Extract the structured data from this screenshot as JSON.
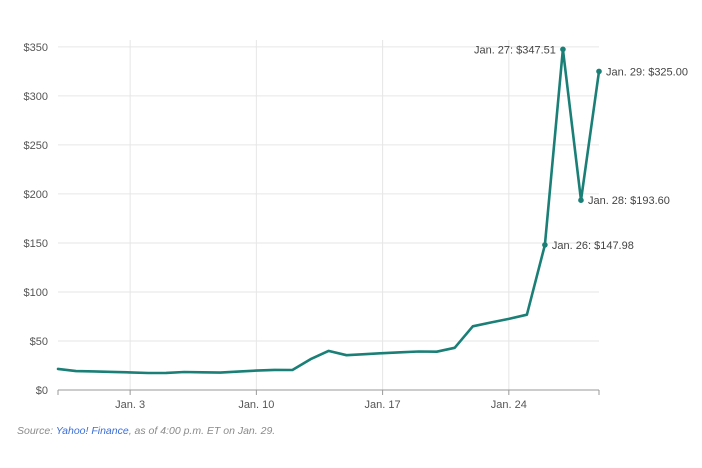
{
  "chart_data": {
    "type": "line",
    "title": "",
    "xlabel": "",
    "ylabel": "",
    "y_tick_labels": [
      "$0",
      "$50",
      "$100",
      "$150",
      "$200",
      "$250",
      "$300",
      "$350"
    ],
    "y_ticks": [
      0,
      50,
      100,
      150,
      200,
      250,
      300,
      350
    ],
    "ylim": [
      0,
      357
    ],
    "x_tick_labels": [
      "Jan. 3",
      "Jan. 10",
      "Jan. 17",
      "Jan. 24"
    ],
    "x_ticks": [
      "2021-01-03",
      "2021-01-10",
      "2021-01-17",
      "2021-01-24"
    ],
    "xlim": [
      "2020-12-30",
      "2021-01-29"
    ],
    "grid": true,
    "line_color": "#1a7f76",
    "series": [
      {
        "x": [
          "2020-12-30",
          "2020-12-31",
          "2021-01-01",
          "2021-01-02",
          "2021-01-03",
          "2021-01-04",
          "2021-01-05",
          "2021-01-06",
          "2021-01-07",
          "2021-01-08",
          "2021-01-09",
          "2021-01-10",
          "2021-01-11",
          "2021-01-12",
          "2021-01-13",
          "2021-01-14",
          "2021-01-15",
          "2021-01-16",
          "2021-01-17",
          "2021-01-18",
          "2021-01-19",
          "2021-01-20",
          "2021-01-21",
          "2021-01-22",
          "2021-01-23",
          "2021-01-24",
          "2021-01-25",
          "2021-01-26",
          "2021-01-27",
          "2021-01-28",
          "2021-01-29"
        ],
        "values": [
          21.5,
          19.3,
          19.0,
          18.5,
          18.0,
          17.3,
          17.4,
          18.4,
          18.1,
          17.7,
          18.8,
          19.8,
          20.5,
          20.4,
          31.4,
          39.9,
          35.5,
          36.5,
          37.5,
          38.5,
          39.3,
          39.1,
          43.0,
          65.0,
          68.8,
          72.5,
          76.8,
          147.98,
          347.51,
          193.6,
          325.0
        ]
      }
    ],
    "annotations": [
      {
        "date": "2021-01-26",
        "value": 147.98,
        "text": "Jan. 26: $147.98",
        "side": "right"
      },
      {
        "date": "2021-01-27",
        "value": 347.51,
        "text": "Jan. 27: $347.51",
        "side": "left"
      },
      {
        "date": "2021-01-28",
        "value": 193.6,
        "text": "Jan. 28: $193.60",
        "side": "right"
      },
      {
        "date": "2021-01-29",
        "value": 325.0,
        "text": "Jan. 29: $325.00",
        "side": "right"
      }
    ]
  },
  "source": {
    "prefix": "Source: ",
    "link_text": "Yahoo! Finance",
    "suffix": ", as of 4:00 p.m. ET on Jan. 29."
  }
}
